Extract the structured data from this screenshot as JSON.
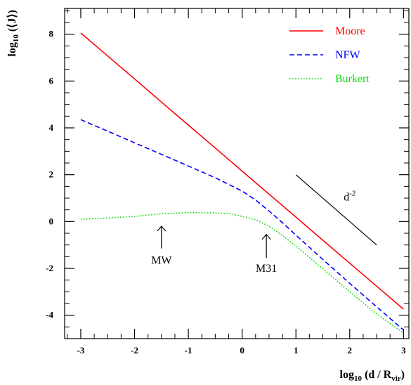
{
  "chart_data": {
    "type": "line",
    "xlabel": {
      "main": "log",
      "sub": "10",
      "rest": " (d / R",
      "sub2": "vir",
      "close": ")"
    },
    "ylabel": {
      "main": "log",
      "sub": "10",
      "rest": " (⟨J⟩)"
    },
    "xlim": [
      -3.3,
      3.1
    ],
    "ylim": [
      -5.0,
      9.1
    ],
    "xticks": [
      -3,
      -2,
      -1,
      0,
      1,
      2,
      3
    ],
    "xtick_labels": [
      "-3",
      "-2",
      "-1",
      "0",
      "1",
      "2",
      "3"
    ],
    "yticks": [
      -4,
      -2,
      0,
      2,
      4,
      6,
      8
    ],
    "ytick_labels": [
      "-4",
      "-2",
      "0",
      "2",
      "4",
      "6",
      "8"
    ],
    "legend_position": "top-right",
    "series": [
      {
        "name": "Moore",
        "color": "#ff0000",
        "style": "solid",
        "x": [
          -3.0,
          -2.5,
          -2.0,
          -1.5,
          -1.0,
          -0.5,
          0.0,
          0.5,
          1.0,
          1.5,
          2.0,
          2.5,
          3.0
        ],
        "y": [
          8.05,
          7.07,
          6.09,
          5.1,
          4.12,
          3.14,
          2.15,
          1.17,
          0.19,
          -0.8,
          -1.78,
          -2.76,
          -3.74
        ]
      },
      {
        "name": "NFW",
        "color": "#0000ff",
        "style": "dashed",
        "x": [
          -3.0,
          -2.5,
          -2.0,
          -1.5,
          -1.0,
          -0.5,
          0.0,
          0.25,
          0.5,
          0.75,
          1.0,
          1.5,
          2.0,
          2.5,
          3.0
        ],
        "y": [
          4.35,
          3.86,
          3.36,
          2.87,
          2.37,
          1.87,
          1.3,
          0.92,
          0.45,
          -0.05,
          -0.58,
          -1.62,
          -2.64,
          -3.64,
          -4.63
        ]
      },
      {
        "name": "Burkert",
        "color": "#00dd00",
        "style": "dotted",
        "x": [
          -3.0,
          -2.5,
          -2.0,
          -1.5,
          -1.0,
          -0.5,
          -0.2,
          0.0,
          0.25,
          0.5,
          0.75,
          1.0,
          1.5,
          2.0,
          2.5,
          3.0
        ],
        "y": [
          0.1,
          0.15,
          0.22,
          0.33,
          0.38,
          0.37,
          0.33,
          0.22,
          0.08,
          -0.2,
          -0.6,
          -1.05,
          -2.02,
          -3.0,
          -3.95,
          -4.75
        ]
      },
      {
        "name": "",
        "color": "#000000",
        "style": "solid",
        "x": [
          1.0,
          2.5
        ],
        "y": [
          2.0,
          -1.0
        ]
      }
    ],
    "annotations": [
      {
        "text": "MW",
        "x": -1.5,
        "y": -1.8,
        "arrow_from": -1.15,
        "arrow_to": -0.2
      },
      {
        "text": "M31",
        "x": 0.45,
        "y": -2.15,
        "arrow_from": -1.55,
        "arrow_to": -0.55
      },
      {
        "text": "d",
        "sup": "-2",
        "x": 2.0,
        "y": 0.9
      }
    ]
  }
}
